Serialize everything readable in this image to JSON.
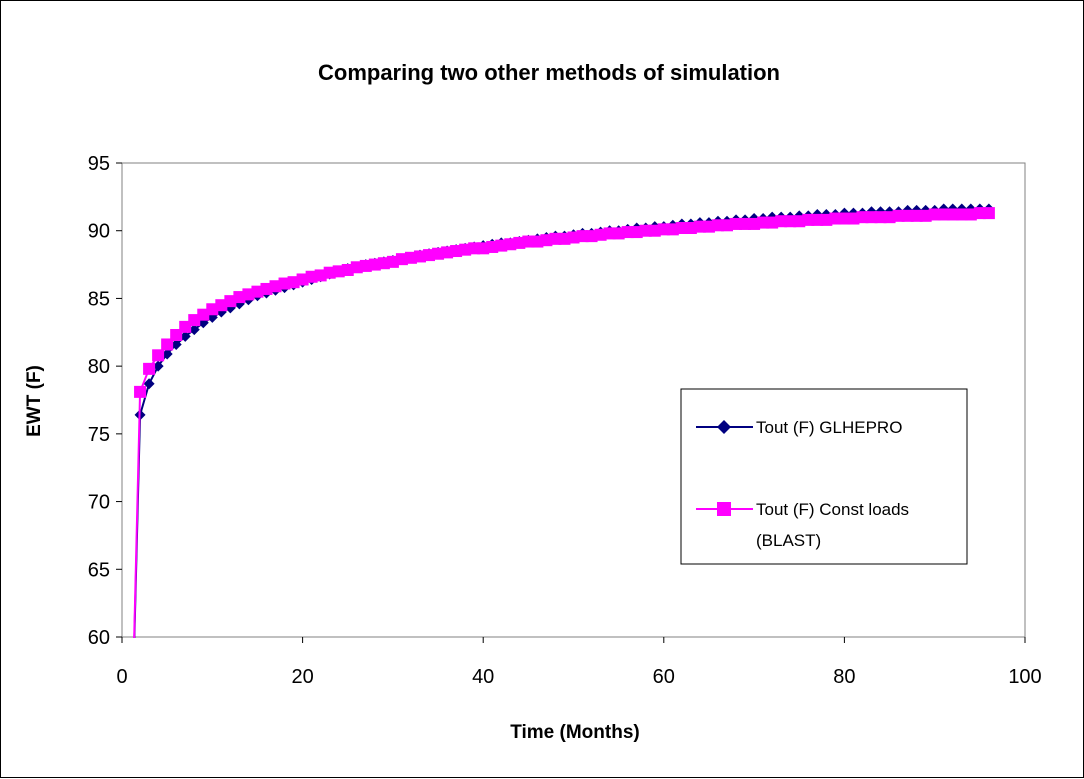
{
  "chart_data": {
    "type": "line",
    "title": "Comparing two other methods of simulation",
    "xlabel": "Time (Months)",
    "ylabel": "EWT (F)",
    "xlim": [
      0,
      100
    ],
    "ylim": [
      60,
      95
    ],
    "xticks": [
      "0",
      "20",
      "40",
      "60",
      "80",
      "100"
    ],
    "yticks": [
      "60",
      "65",
      "70",
      "75",
      "80",
      "85",
      "90",
      "95"
    ],
    "grid": false,
    "legend_position": "right",
    "series": [
      {
        "name": "Tout (F) GLHEPRO",
        "color": "#000080",
        "marker": "diamond",
        "x_start": 1,
        "x_step": 1,
        "values": [
          50.3,
          76.4,
          78.7,
          80.0,
          80.9,
          81.6,
          82.2,
          82.7,
          83.2,
          83.6,
          84.0,
          84.3,
          84.6,
          84.9,
          85.2,
          85.4,
          85.6,
          85.8,
          86.0,
          86.2,
          86.4,
          86.6,
          86.8,
          87.0,
          87.2,
          87.3,
          87.5,
          87.6,
          87.7,
          87.8,
          87.9,
          88.0,
          88.2,
          88.3,
          88.4,
          88.5,
          88.6,
          88.7,
          88.8,
          88.9,
          89.0,
          89.1,
          89.1,
          89.2,
          89.3,
          89.4,
          89.5,
          89.6,
          89.6,
          89.7,
          89.8,
          89.8,
          89.9,
          90.0,
          90.0,
          90.1,
          90.2,
          90.2,
          90.3,
          90.3,
          90.4,
          90.5,
          90.5,
          90.6,
          90.6,
          90.7,
          90.7,
          90.8,
          90.8,
          90.9,
          90.9,
          91.0,
          91.0,
          91.0,
          91.1,
          91.1,
          91.2,
          91.2,
          91.2,
          91.3,
          91.3,
          91.3,
          91.4,
          91.4,
          91.4,
          91.4,
          91.5,
          91.5,
          91.5,
          91.5,
          91.6,
          91.6,
          91.6,
          91.6,
          91.6,
          91.6
        ]
      },
      {
        "name": "Tout (F) Const loads (BLAST)",
        "color": "#FF00FF",
        "marker": "square",
        "x_start": 1,
        "x_step": 1,
        "values": [
          50.3,
          78.1,
          79.8,
          80.8,
          81.6,
          82.3,
          82.9,
          83.4,
          83.8,
          84.2,
          84.5,
          84.8,
          85.1,
          85.3,
          85.5,
          85.7,
          85.9,
          86.1,
          86.2,
          86.4,
          86.6,
          86.7,
          86.9,
          87.0,
          87.1,
          87.3,
          87.4,
          87.5,
          87.6,
          87.7,
          87.9,
          88.0,
          88.1,
          88.2,
          88.3,
          88.4,
          88.5,
          88.6,
          88.7,
          88.7,
          88.8,
          88.9,
          89.0,
          89.1,
          89.2,
          89.2,
          89.3,
          89.4,
          89.4,
          89.5,
          89.6,
          89.6,
          89.7,
          89.8,
          89.8,
          89.9,
          89.9,
          90.0,
          90.0,
          90.1,
          90.1,
          90.2,
          90.2,
          90.3,
          90.3,
          90.4,
          90.4,
          90.5,
          90.5,
          90.5,
          90.6,
          90.6,
          90.7,
          90.7,
          90.7,
          90.8,
          90.8,
          90.8,
          90.9,
          90.9,
          90.9,
          91.0,
          91.0,
          91.0,
          91.0,
          91.1,
          91.1,
          91.1,
          91.1,
          91.2,
          91.2,
          91.2,
          91.2,
          91.2,
          91.3,
          91.3
        ]
      }
    ],
    "legend": {
      "line1": "Tout (F) GLHEPRO",
      "line2a": "Tout (F) Const loads",
      "line2b": "(BLAST)"
    }
  }
}
